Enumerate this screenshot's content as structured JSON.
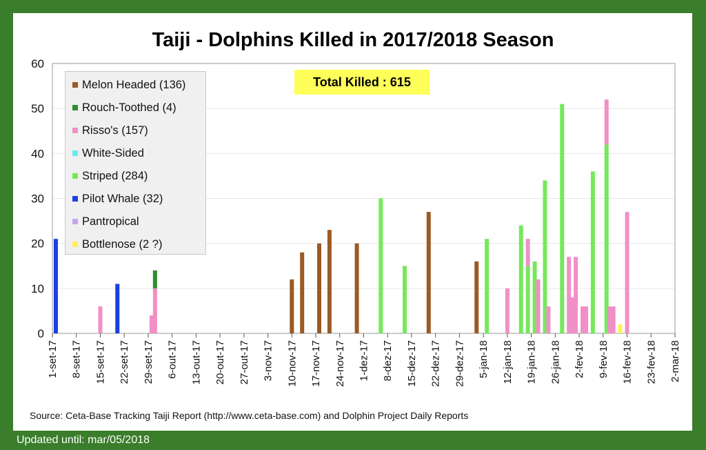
{
  "chart_data": {
    "type": "bar",
    "stacked": true,
    "title": "Taiji - Dolphins Killed in 2017/2018 Season",
    "annotation": "Total Killed : 615",
    "source": "Source: Ceta-Base Tracking Taiji Report (http://www.ceta-base.com) and Dolphin Project Daily Reports",
    "updated": "Updated until:  mar/05/2018",
    "xlabel": "",
    "ylabel": "",
    "ylim": [
      0,
      60
    ],
    "yticks": [
      "0",
      "10",
      "20",
      "30",
      "40",
      "50",
      "60"
    ],
    "xlim_days": [
      0,
      182
    ],
    "xticks": [
      "1-set-17",
      "8-set-17",
      "15-set-17",
      "22-set-17",
      "29-set-17",
      "6-out-17",
      "13-out-17",
      "20-out-17",
      "27-out-17",
      "3-nov-17",
      "10-nov-17",
      "17-nov-17",
      "24-nov-17",
      "1-dez-17",
      "8-dez-17",
      "15-dez-17",
      "22-dez-17",
      "29-dez-17",
      "5-jan-18",
      "12-jan-18",
      "19-jan-18",
      "26-jan-18",
      "2-fev-18",
      "9-fev-18",
      "16-fev-18",
      "23-fev-18",
      "2-mar-18"
    ],
    "grid": true,
    "legend_position": "top-left",
    "series": [
      {
        "key": "melon",
        "name": "Melon Headed (136)",
        "color": "#9b5a24"
      },
      {
        "key": "rough",
        "name": "Rouch-Toothed (4)",
        "color": "#2f8f2f"
      },
      {
        "key": "risso",
        "name": "Risso's (157)",
        "color": "#f090c6"
      },
      {
        "key": "white",
        "name": "White-Sided",
        "color": "#66eaf2"
      },
      {
        "key": "striped",
        "name": "Striped (284)",
        "color": "#76e85c"
      },
      {
        "key": "pilot",
        "name": "Pilot Whale (32)",
        "color": "#1b3fe0"
      },
      {
        "key": "pantropical",
        "name": "Pantropical",
        "color": "#c8a6ee"
      },
      {
        "key": "bottlenose",
        "name": "Bottlenose (2 ?)",
        "color": "#fff05a"
      }
    ],
    "bars": [
      {
        "day": 1,
        "values": {
          "pilot": 21
        }
      },
      {
        "day": 14,
        "values": {
          "risso": 6
        }
      },
      {
        "day": 19,
        "values": {
          "pilot": 11
        }
      },
      {
        "day": 29,
        "values": {
          "risso": 4
        }
      },
      {
        "day": 30,
        "values": {
          "risso": 10,
          "rough": 4
        }
      },
      {
        "day": 70,
        "values": {
          "melon": 12
        }
      },
      {
        "day": 73,
        "values": {
          "melon": 18
        }
      },
      {
        "day": 78,
        "values": {
          "melon": 20
        }
      },
      {
        "day": 81,
        "values": {
          "melon": 23
        }
      },
      {
        "day": 89,
        "values": {
          "melon": 20
        }
      },
      {
        "day": 96,
        "values": {
          "striped": 30
        }
      },
      {
        "day": 103,
        "values": {
          "striped": 15
        }
      },
      {
        "day": 110,
        "values": {
          "melon": 27
        }
      },
      {
        "day": 124,
        "values": {
          "melon": 16
        }
      },
      {
        "day": 127,
        "values": {
          "striped": 21
        }
      },
      {
        "day": 133,
        "values": {
          "risso": 10
        }
      },
      {
        "day": 137,
        "values": {
          "striped": 24
        }
      },
      {
        "day": 139,
        "values": {
          "striped": 15,
          "risso": 6
        }
      },
      {
        "day": 141,
        "values": {
          "striped": 16
        }
      },
      {
        "day": 142,
        "values": {
          "risso": 12
        }
      },
      {
        "day": 144,
        "values": {
          "striped": 34
        }
      },
      {
        "day": 145,
        "values": {
          "risso": 6
        }
      },
      {
        "day": 149,
        "values": {
          "striped": 51
        }
      },
      {
        "day": 151,
        "values": {
          "risso": 17
        }
      },
      {
        "day": 152,
        "values": {
          "risso": 8
        }
      },
      {
        "day": 153,
        "values": {
          "risso": 17
        }
      },
      {
        "day": 155,
        "values": {
          "risso": 6
        }
      },
      {
        "day": 156,
        "values": {
          "risso": 6
        }
      },
      {
        "day": 158,
        "values": {
          "striped": 36
        }
      },
      {
        "day": 162,
        "values": {
          "striped": 42,
          "risso": 10
        }
      },
      {
        "day": 163,
        "values": {
          "risso": 6
        }
      },
      {
        "day": 164,
        "values": {
          "risso": 6
        }
      },
      {
        "day": 166,
        "values": {
          "bottlenose": 2
        }
      },
      {
        "day": 168,
        "values": {
          "risso": 27
        }
      }
    ]
  }
}
